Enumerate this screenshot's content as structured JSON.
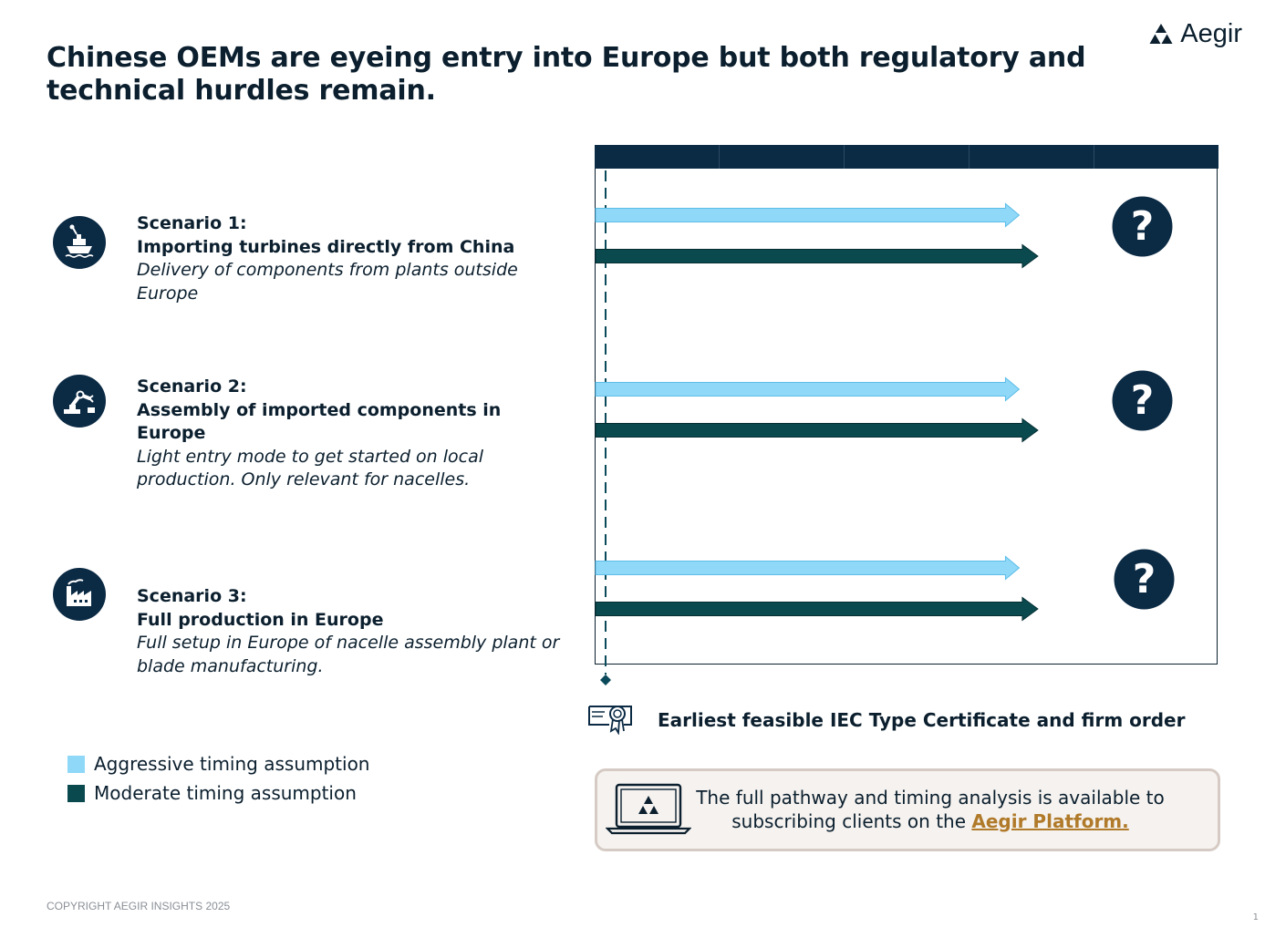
{
  "title": "Chinese OEMs are eyeing entry into Europe but both regulatory and technical hurdles remain.",
  "brand": {
    "name": "Aegir",
    "color": "#0b1f2e"
  },
  "scenarios": [
    {
      "icon": "ship-icon",
      "heading": "Scenario 1:",
      "subtitle": "Importing turbines directly from China",
      "description": "Delivery of components from plants outside Europe"
    },
    {
      "icon": "robot-arm-icon",
      "heading": "Scenario 2:",
      "subtitle": "Assembly of imported components in Europe",
      "description": "Light entry mode to get started on local production. Only relevant for nacelles."
    },
    {
      "icon": "factory-icon",
      "heading": "Scenario 3:",
      "subtitle": "Full production in Europe",
      "description": "Full setup in Europe of nacelle assembly plant or blade manufacturing."
    }
  ],
  "timeline": {
    "columns": 5,
    "marker_symbol": "?",
    "rows": [
      {
        "scenario": 1,
        "aggressive_end": 3.4,
        "moderate_end": 3.55
      },
      {
        "scenario": 2,
        "aggressive_end": 3.4,
        "moderate_end": 3.55
      },
      {
        "scenario": 3,
        "aggressive_end": 3.4,
        "moderate_end": 3.55
      }
    ],
    "milestone_position": 0.08
  },
  "colors": {
    "aggressive": "#8fd8f8",
    "moderate": "#0a4a4f",
    "header": "#0b2a44",
    "icon_bg": "#0b2a44"
  },
  "legend": [
    {
      "label": "Aggressive timing assumption",
      "color": "#8fd8f8"
    },
    {
      "label": "Moderate timing assumption",
      "color": "#0a4a4f"
    }
  ],
  "milestone_label": "Earliest feasible IEC Type Certificate and firm order",
  "note": {
    "text": "The full pathway and timing analysis is available to subscribing clients on the",
    "link": "Aegir Platform."
  },
  "copyright": "COPYRIGHT AEGIR INSIGHTS 2025",
  "page_number": "1"
}
